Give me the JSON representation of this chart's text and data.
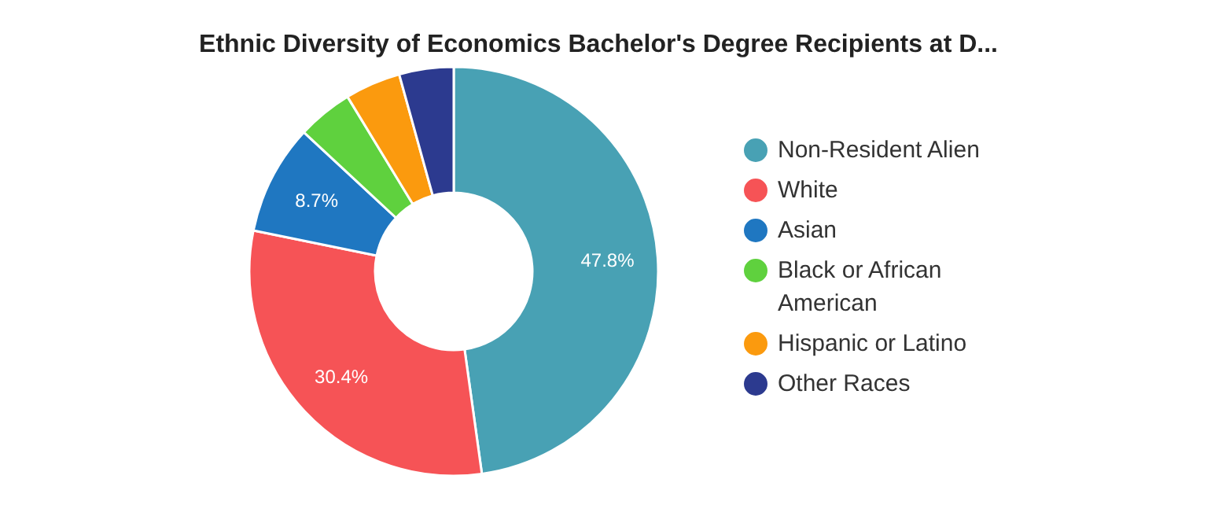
{
  "chart_data": {
    "type": "donut",
    "title": "Ethnic Diversity of Economics Bachelor's Degree Recipients at D...",
    "categories": [
      "Non-Resident Alien",
      "White",
      "Asian",
      "Black or African American",
      "Hispanic or Latino",
      "Other Races"
    ],
    "values": [
      47.8,
      30.4,
      8.7,
      4.4,
      4.4,
      4.3
    ],
    "colors": [
      "#48a1b4",
      "#f65356",
      "#1f77c1",
      "#5fd13e",
      "#fb9a0e",
      "#2c3a8f"
    ],
    "value_labels": [
      "47.8%",
      "30.4%",
      "8.7%",
      null,
      null,
      null
    ],
    "legend": "right"
  }
}
